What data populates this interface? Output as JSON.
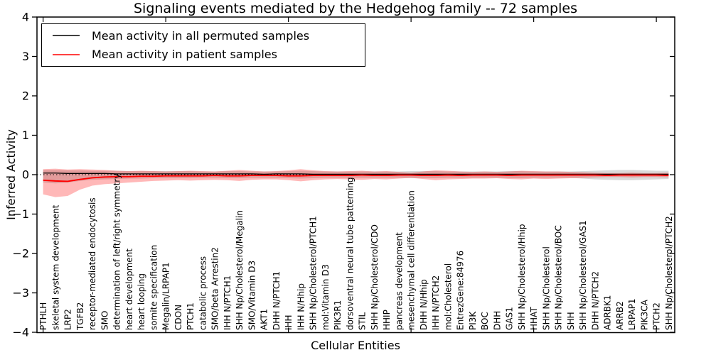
{
  "figure": {
    "title": "Signaling events mediated by the Hedgehog family -- 72 samples",
    "xlabel": "Cellular Entities",
    "ylabel": "Inferred Activity"
  },
  "legend": {
    "entries": [
      {
        "label": "Mean activity in all permuted samples",
        "color": "#000000"
      },
      {
        "label": "Mean activity in patient samples",
        "color": "#ff0000"
      }
    ]
  },
  "chart_data": {
    "type": "line",
    "title": "Signaling events mediated by the Hedgehog family -- 72 samples",
    "xlabel": "Cellular Entities",
    "ylabel": "Inferred Activity",
    "ylim": [
      -4,
      4
    ],
    "yticks": [
      -4,
      -3,
      -2,
      -1,
      0,
      1,
      2,
      3,
      4
    ],
    "grid": false,
    "legend_position": "upper left",
    "zero_line": {
      "y": 0,
      "style": "dotted",
      "color": "#000000"
    },
    "sample_count_in_title": 72,
    "categories": [
      "PTHLH",
      "skeletal system development",
      "LRP2",
      "TGFB2",
      "receptor-mediated endocytosis",
      "SMO",
      "determination of left/right symmetry",
      "heart development",
      "heart looping",
      "somite specification",
      "Megalin/LRPAP1",
      "CDON",
      "PTCH1",
      "catabolic process",
      "SMO/beta Arrestin2",
      "IHH N/PTCH1",
      "SHH Np/Cholesterol/Megalin",
      "SMO/Vitamin D3",
      "AKT1",
      "DHH N/PTCH1",
      "IHH",
      "IHH N/Hhip",
      "SHH Np/Cholesterol/PTCH1",
      "mol:Vitamin D3",
      "PIK3R1",
      "dorsoventral neural tube patterning",
      "STIL",
      "SHH Np/Cholesterol/CDO",
      "HHIP",
      "pancreas development",
      "mesenchymal cell differentiation",
      "DHH N/Hhip",
      "IHH N/PTCH2",
      "mol:Cholesterol",
      "EntrezGene:84976",
      "PI3K",
      "BOC",
      "DHH",
      "GAS1",
      "SHH Np/Cholesterol/Hhip",
      "HHAT",
      "SHH Np/Cholesterol",
      "SHH Np/Cholesterol/BOC",
      "SHH",
      "SHH Np/Cholesterol/GAS1",
      "DHH N/PTCH2",
      "ADRBK1",
      "ARRB2",
      "LRPAP1",
      "PIK3CA",
      "PTCH2",
      "SHH Np/Cholesterol/PTCH2"
    ],
    "series": [
      {
        "name": "Mean activity in all permuted samples",
        "color": "#000000",
        "band_color": "rgba(0,0,0,0.15)",
        "mean": [
          0.04,
          0.04,
          0.03,
          0.03,
          0.03,
          0.03,
          0.02,
          0.02,
          0.02,
          0.02,
          0.02,
          0.02,
          0.02,
          0.02,
          0.02,
          0.02,
          0.02,
          0.02,
          0.01,
          0.02,
          0.02,
          0.02,
          0.01,
          0.01,
          0.01,
          0.01,
          0.01,
          0.01,
          0.01,
          0.01,
          0.01,
          0.01,
          0.01,
          0.01,
          0.01,
          0.01,
          0.01,
          0.01,
          0.01,
          0.01,
          0.01,
          0.01,
          0.01,
          0.01,
          0.01,
          0.01,
          0.01,
          0.01,
          0.01,
          0.01,
          0.01,
          0.01
        ],
        "upper": [
          0.12,
          0.12,
          0.11,
          0.11,
          0.1,
          0.1,
          0.1,
          0.09,
          0.09,
          0.09,
          0.09,
          0.09,
          0.09,
          0.08,
          0.08,
          0.09,
          0.09,
          0.08,
          0.08,
          0.08,
          0.09,
          0.1,
          0.09,
          0.08,
          0.08,
          0.08,
          0.08,
          0.08,
          0.08,
          0.08,
          0.09,
          0.09,
          0.09,
          0.08,
          0.08,
          0.08,
          0.08,
          0.08,
          0.09,
          0.09,
          0.08,
          0.08,
          0.08,
          0.08,
          0.09,
          0.1,
          0.11,
          0.12,
          0.12,
          0.11,
          0.1,
          0.1
        ],
        "lower": [
          -0.2,
          -0.22,
          -0.2,
          -0.16,
          -0.13,
          -0.12,
          -0.11,
          -0.1,
          -0.1,
          -0.09,
          -0.09,
          -0.09,
          -0.09,
          -0.08,
          -0.08,
          -0.09,
          -0.09,
          -0.08,
          -0.08,
          -0.08,
          -0.09,
          -0.1,
          -0.09,
          -0.08,
          -0.08,
          -0.08,
          -0.08,
          -0.08,
          -0.08,
          -0.08,
          -0.09,
          -0.09,
          -0.09,
          -0.08,
          -0.08,
          -0.08,
          -0.08,
          -0.08,
          -0.09,
          -0.09,
          -0.08,
          -0.08,
          -0.08,
          -0.08,
          -0.1,
          -0.12,
          -0.13,
          -0.14,
          -0.14,
          -0.13,
          -0.12,
          -0.11
        ]
      },
      {
        "name": "Mean activity in patient samples",
        "color": "#ff0000",
        "band_color": "rgba(255,0,0,0.28)",
        "mean": [
          -0.14,
          -0.16,
          -0.17,
          -0.12,
          -0.08,
          -0.06,
          -0.05,
          -0.05,
          -0.04,
          -0.04,
          -0.03,
          -0.03,
          -0.03,
          -0.03,
          -0.02,
          -0.03,
          -0.03,
          -0.02,
          -0.02,
          -0.02,
          -0.03,
          -0.03,
          -0.02,
          -0.02,
          -0.02,
          -0.02,
          -0.01,
          -0.02,
          -0.02,
          -0.01,
          -0.01,
          -0.02,
          -0.02,
          -0.01,
          -0.02,
          -0.01,
          -0.01,
          -0.01,
          -0.02,
          -0.01,
          -0.01,
          -0.01,
          -0.01,
          -0.01,
          -0.01,
          -0.01,
          -0.02,
          -0.01,
          -0.01,
          -0.01,
          -0.01,
          -0.02
        ],
        "upper": [
          0.14,
          0.15,
          0.13,
          0.14,
          0.13,
          0.12,
          0.1,
          0.09,
          0.1,
          0.09,
          0.08,
          0.09,
          0.1,
          0.09,
          0.08,
          0.1,
          0.12,
          0.1,
          0.08,
          0.09,
          0.11,
          0.14,
          0.11,
          0.09,
          0.08,
          0.09,
          0.1,
          0.08,
          0.09,
          0.07,
          0.05,
          0.08,
          0.11,
          0.1,
          0.08,
          0.07,
          0.08,
          0.07,
          0.08,
          0.1,
          0.09,
          0.08,
          0.08,
          0.07,
          0.06,
          0.05,
          0.04,
          0.04,
          0.05,
          0.04,
          0.04,
          0.05
        ],
        "lower": [
          -0.5,
          -0.57,
          -0.54,
          -0.38,
          -0.28,
          -0.24,
          -0.22,
          -0.2,
          -0.18,
          -0.16,
          -0.15,
          -0.14,
          -0.15,
          -0.14,
          -0.13,
          -0.14,
          -0.16,
          -0.13,
          -0.12,
          -0.12,
          -0.14,
          -0.17,
          -0.14,
          -0.12,
          -0.11,
          -0.12,
          -0.13,
          -0.11,
          -0.12,
          -0.1,
          -0.08,
          -0.11,
          -0.14,
          -0.12,
          -0.11,
          -0.1,
          -0.1,
          -0.09,
          -0.11,
          -0.12,
          -0.1,
          -0.11,
          -0.1,
          -0.09,
          -0.08,
          -0.07,
          -0.06,
          -0.06,
          -0.07,
          -0.06,
          -0.06,
          -0.07
        ]
      }
    ]
  }
}
